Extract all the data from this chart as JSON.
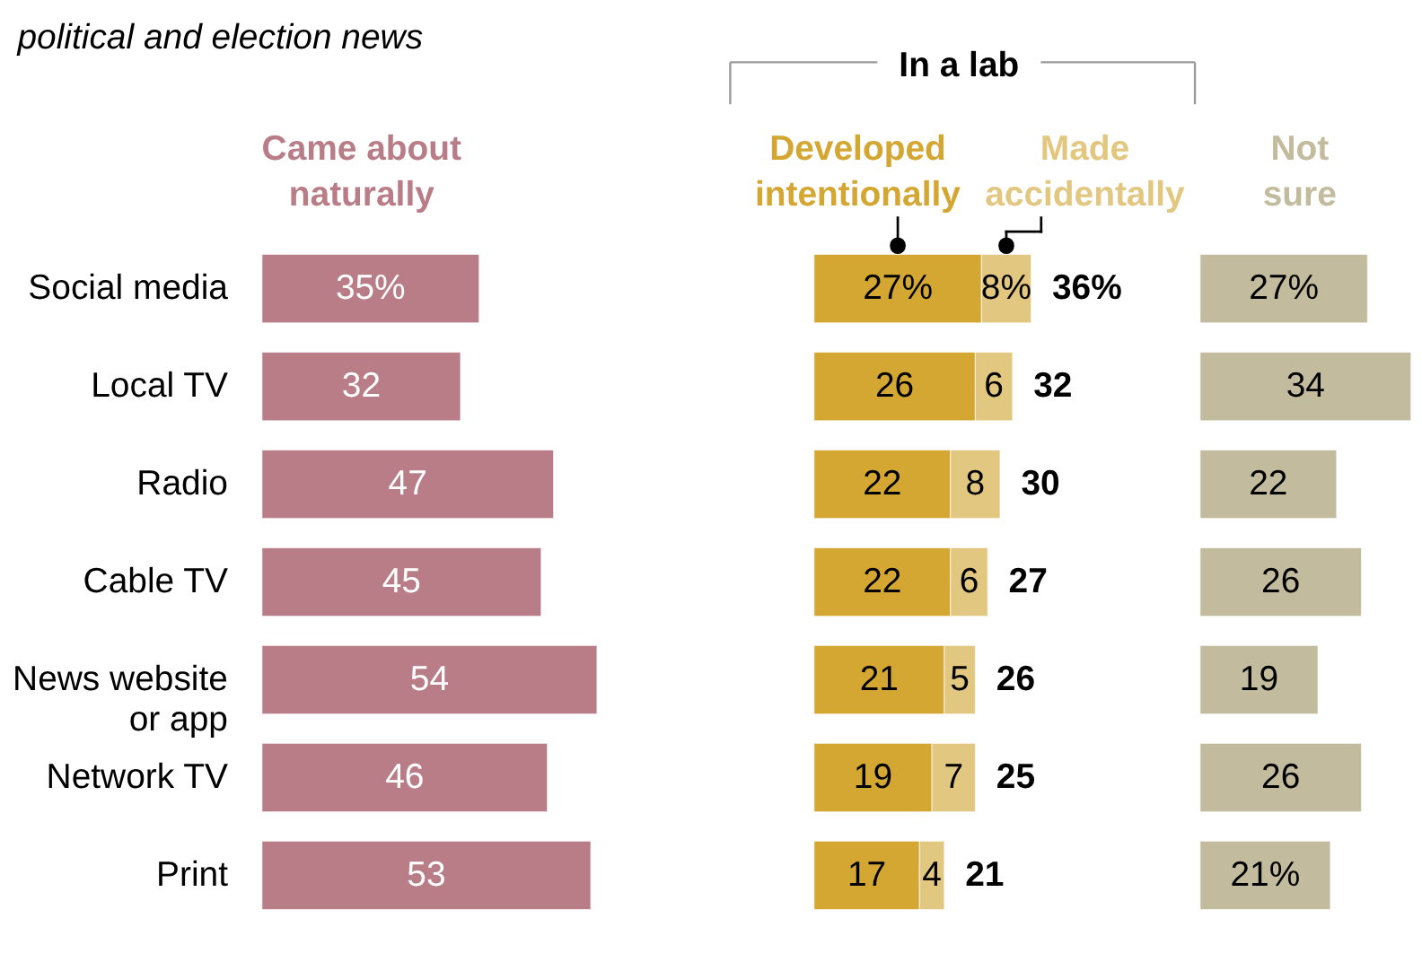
{
  "chart_data": [
    {
      "type": "bar",
      "orientation": "horizontal",
      "subtitle": "political and election news",
      "categories": [
        "Social media",
        "Local TV",
        "Radio",
        "Cable TV",
        "News website or app",
        "Network TV",
        "Print"
      ],
      "series": [
        {
          "name": "Came about naturally",
          "color": "#b97d87",
          "values": [
            35,
            32,
            47,
            45,
            54,
            46,
            53
          ],
          "value_labels": [
            "35%",
            "32",
            "47",
            "45",
            "54",
            "46",
            "53"
          ]
        }
      ],
      "tick_labels": "y"
    },
    {
      "type": "bar",
      "orientation": "horizontal",
      "stacked": true,
      "title": "In a lab",
      "categories": [
        "Social media",
        "Local TV",
        "Radio",
        "Cable TV",
        "News website or app",
        "Network TV",
        "Print"
      ],
      "series": [
        {
          "name": "Developed intentionally",
          "color": "#d4a632",
          "values": [
            27,
            26,
            22,
            22,
            21,
            19,
            17
          ],
          "value_labels": [
            "27%",
            "26",
            "22",
            "22",
            "21",
            "19",
            "17"
          ]
        },
        {
          "name": "Made accidentally",
          "color": "#e2c780",
          "values": [
            8,
            6,
            8,
            6,
            5,
            7,
            4
          ],
          "value_labels": [
            "8%",
            "6",
            "8",
            "6",
            "5",
            "7",
            "4"
          ]
        }
      ],
      "totals": [
        "36%",
        "32",
        "30",
        "27",
        "26",
        "25",
        "21"
      ],
      "tick_labels": false
    },
    {
      "type": "bar",
      "orientation": "horizontal",
      "categories": [
        "Social media",
        "Local TV",
        "Radio",
        "Cable TV",
        "News website or app",
        "Network TV",
        "Print"
      ],
      "series": [
        {
          "name": "Not sure",
          "color": "#c3bb9d",
          "values": [
            27,
            34,
            22,
            26,
            19,
            26,
            21
          ],
          "value_labels": [
            "27%",
            "34",
            "22",
            "26",
            "19",
            "26",
            "21%"
          ]
        }
      ],
      "tick_labels": false
    }
  ]
}
